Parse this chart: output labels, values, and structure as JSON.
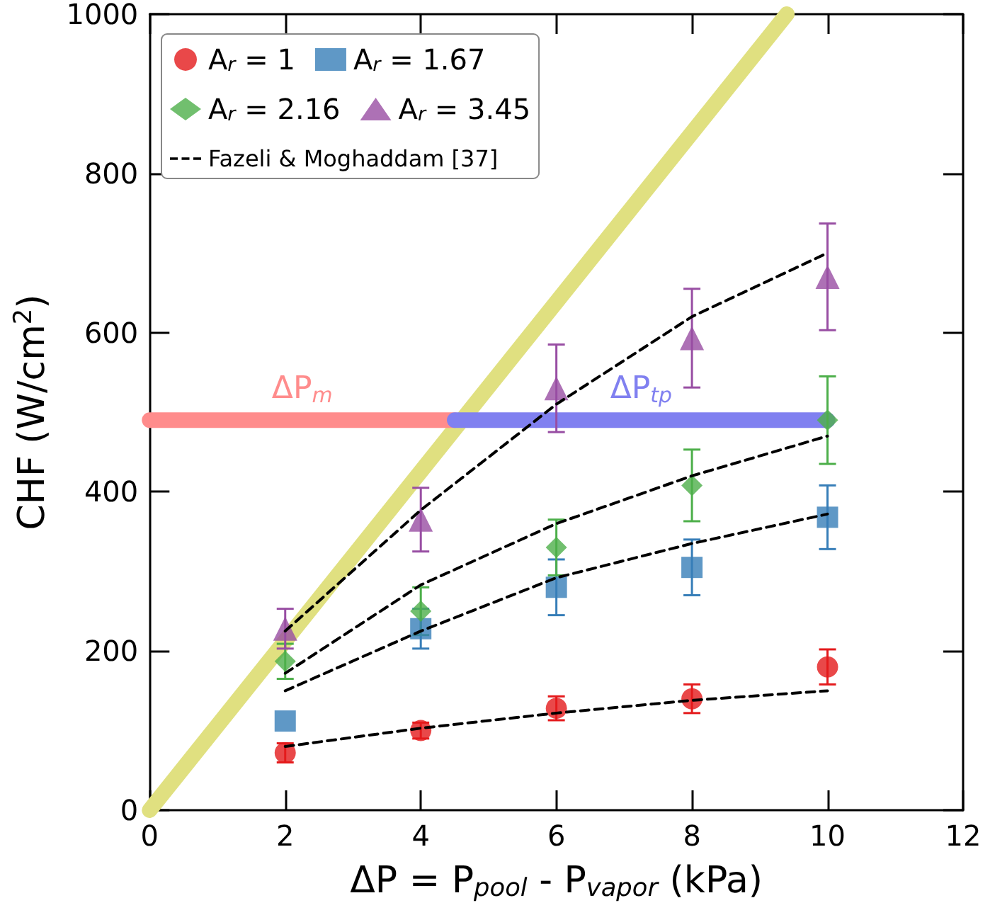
{
  "chart_data": {
    "type": "scatter",
    "xlabel": "ΔP = P$_{pool}$ - P$_{vapor}$ (kPa)",
    "ylabel": "CHF (W/cm$^{2}$)",
    "x": [
      2,
      4,
      6,
      8,
      10
    ],
    "xlim": [
      0,
      12
    ],
    "xticks": [
      0,
      2,
      4,
      6,
      8,
      10,
      12
    ],
    "ylim": [
      0,
      1000
    ],
    "yticks": [
      0,
      200,
      400,
      600,
      800,
      1000
    ],
    "grid": false,
    "legend": "top left",
    "series": [
      {
        "name": "A$_{r}$ = 1",
        "marker": "circle",
        "color": "#e41a1c",
        "values": [
          72,
          100,
          128,
          140,
          180
        ],
        "errors": [
          12,
          10,
          15,
          18,
          22
        ]
      },
      {
        "name": "A$_{r}$ = 1.67",
        "marker": "square",
        "color": "#377eb8",
        "values": [
          112,
          228,
          280,
          305,
          368
        ],
        "errors": [
          null,
          25,
          35,
          35,
          40
        ]
      },
      {
        "name": "A$_{r}$ = 2.16",
        "marker": "diamond",
        "color": "#4daf4a",
        "values": [
          187,
          250,
          330,
          408,
          490
        ],
        "errors": [
          22,
          30,
          35,
          45,
          55
        ]
      },
      {
        "name": "A$_{r}$ = 3.45",
        "marker": "triangle",
        "color": "#984ea3",
        "values": [
          228,
          365,
          530,
          593,
          670
        ],
        "errors": [
          25,
          40,
          55,
          62,
          67
        ]
      },
      {
        "name": "Fazeli & Moghaddam [37]",
        "type": "line",
        "line_style": "dashed",
        "marker": "none",
        "color": "#000000",
        "values": [
          80,
          103,
          122,
          138,
          150
        ]
      },
      {
        "type": "line",
        "line_style": "dashed",
        "marker": "none",
        "color": "#000000",
        "values": [
          150,
          225,
          292,
          335,
          372
        ]
      },
      {
        "type": "line",
        "line_style": "dashed",
        "marker": "none",
        "color": "#000000",
        "values": [
          172,
          283,
          360,
          420,
          470
        ]
      },
      {
        "type": "line",
        "line_style": "dashed",
        "marker": "none",
        "color": "#000000",
        "values": [
          225,
          377,
          510,
          620,
          700
        ]
      },
      {
        "type": "line",
        "line_style": "solid",
        "marker": "none",
        "color": "#e0e080",
        "x": [
          0,
          9.4
        ],
        "values": [
          0,
          1000
        ]
      },
      {
        "name": "ΔP$_{m}$",
        "type": "line",
        "line_style": "solid",
        "marker": "none",
        "color": "#ff8c8c",
        "x": [
          0,
          4.5
        ],
        "values": [
          490,
          490
        ]
      },
      {
        "name": "ΔP$_{tp}$",
        "type": "line",
        "line_style": "solid",
        "marker": "none",
        "color": "#8080f0",
        "x": [
          4.5,
          10
        ],
        "values": [
          490,
          490
        ]
      }
    ]
  }
}
